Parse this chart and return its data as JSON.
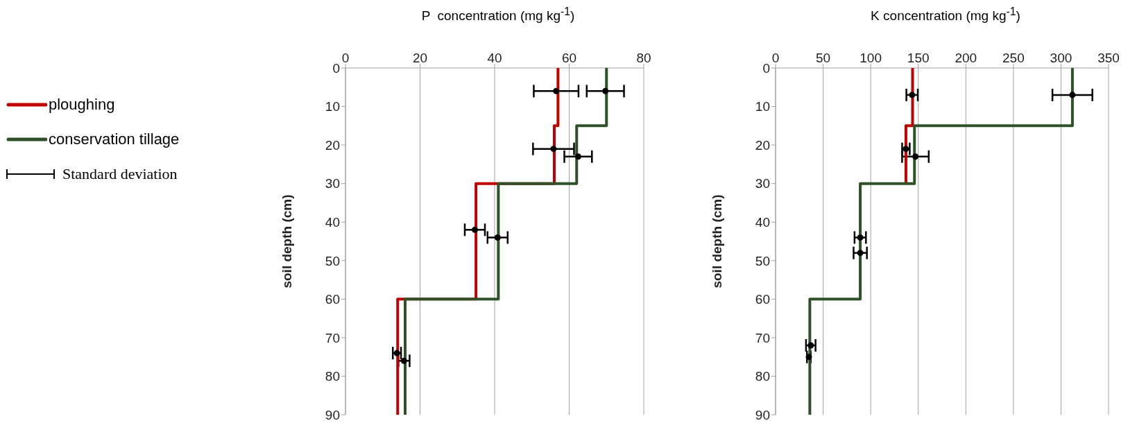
{
  "chart_data": [
    {
      "type": "line",
      "xlabel": "P  concentration (mg kg$^{-1}$)",
      "ylabel": "soil depth (cm)",
      "xlim": [
        0,
        80
      ],
      "xticks": [
        0,
        20,
        40,
        60,
        80
      ],
      "ylim": [
        90,
        0
      ],
      "yticks": [
        0,
        10,
        20,
        30,
        40,
        50,
        60,
        70,
        80,
        90
      ],
      "grid": "x",
      "legend": "left",
      "line_style": "solid",
      "marker": "none",
      "series": [
        {
          "name": "ploughing",
          "color": "#c00000",
          "x": [
            57,
            57,
            56,
            56,
            35,
            35,
            14,
            14
          ],
          "values": [
            0,
            15,
            15,
            30,
            30,
            60,
            60,
            90
          ]
        },
        {
          "name": "conservation tillage",
          "color": "#2e5128",
          "x": [
            70,
            70,
            62,
            62,
            41,
            41,
            16,
            16
          ],
          "values": [
            0,
            15,
            15,
            30,
            30,
            60,
            60,
            90
          ]
        },
        {
          "name": "Standard deviation",
          "type": "scatter",
          "marker": "circle",
          "color": "#000000",
          "x": [
            56.5,
            69.7,
            55.8,
            62.4,
            34.7,
            40.8,
            13.8,
            15.7
          ],
          "values": [
            6,
            6,
            21,
            23,
            42,
            44,
            74,
            76
          ],
          "xerrors": [
            6,
            5,
            5.5,
            3.7,
            2.7,
            2.7,
            1.1,
            1.5
          ]
        }
      ]
    },
    {
      "type": "line",
      "xlabel": "K concentration (mg kg$^{-1}$)",
      "ylabel": "soil depth (cm)",
      "xlim": [
        0,
        350
      ],
      "xticks": [
        0,
        50,
        100,
        150,
        200,
        250,
        300,
        350
      ],
      "ylim": [
        90,
        0
      ],
      "yticks": [
        0,
        10,
        20,
        30,
        40,
        50,
        60,
        70,
        80,
        90
      ],
      "grid": "x",
      "line_style": "solid",
      "marker": "none",
      "series": [
        {
          "color": "#c00000",
          "x": [
            144,
            144,
            137,
            137
          ],
          "values": [
            0,
            15,
            15,
            30
          ]
        },
        {
          "color": "#2e5128",
          "x": [
            312,
            312,
            146,
            146,
            89,
            89,
            36,
            36
          ],
          "values": [
            0,
            15,
            15,
            30,
            30,
            60,
            60,
            90
          ]
        },
        {
          "type": "scatter",
          "marker": "circle",
          "color": "#000000",
          "x": [
            143.5,
            312,
            137,
            147,
            89,
            89,
            37,
            35
          ],
          "values": [
            7,
            7,
            21,
            23,
            44,
            48,
            72,
            75
          ],
          "xerrors": [
            6,
            21,
            4,
            14,
            6,
            7,
            5,
            2
          ]
        }
      ]
    }
  ]
}
